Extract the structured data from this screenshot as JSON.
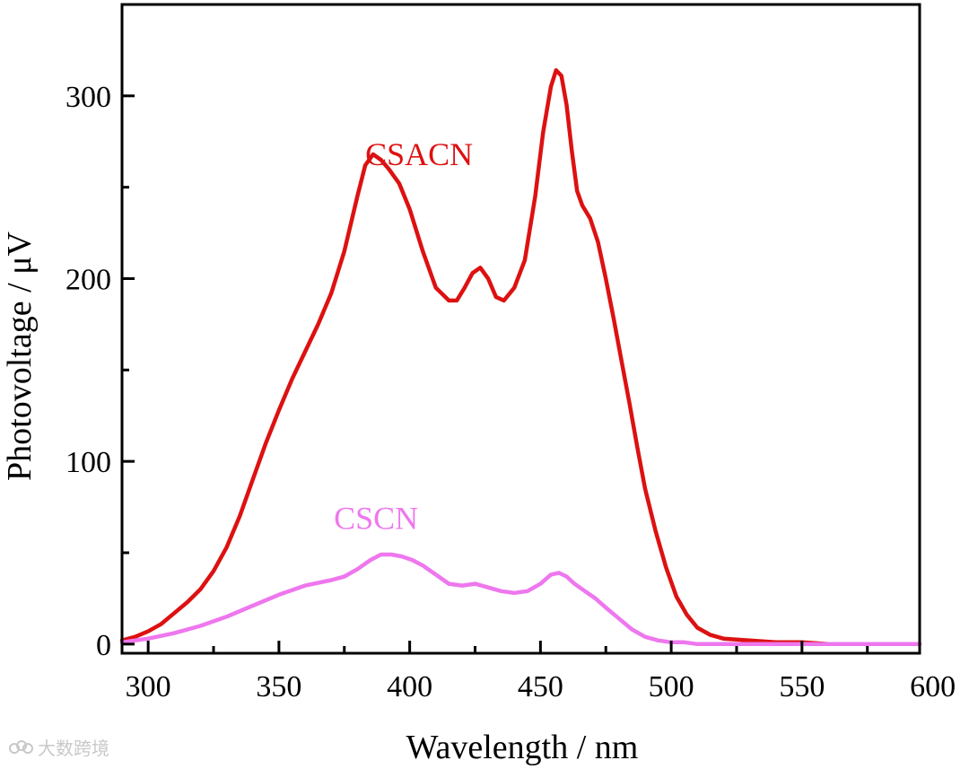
{
  "chart_data": {
    "type": "line",
    "xlabel": "Wavelength / nm",
    "ylabel": "Photovoltage / μV",
    "xlim": [
      290,
      595
    ],
    "ylim": [
      -5,
      350
    ],
    "xticks": [
      300,
      350,
      400,
      450,
      500,
      550,
      600
    ],
    "yticks": [
      0,
      100,
      200,
      300
    ],
    "grid": false,
    "legend": "inline labels",
    "series": [
      {
        "name": "CSACN",
        "color": "#dd1111",
        "label_at": [
          383,
          262
        ],
        "x": [
          290,
          295,
          300,
          305,
          310,
          315,
          320,
          325,
          330,
          335,
          340,
          345,
          350,
          355,
          360,
          365,
          370,
          375,
          380,
          383,
          386,
          389,
          392,
          396,
          400,
          405,
          410,
          415,
          418,
          421,
          424,
          427,
          430,
          433,
          436,
          440,
          444,
          448,
          451,
          454,
          456,
          458,
          460,
          462,
          464,
          466,
          469,
          472,
          475,
          478,
          481,
          484,
          487,
          490,
          494,
          498,
          502,
          506,
          510,
          515,
          520,
          530,
          540,
          550,
          560,
          570,
          580,
          590,
          595
        ],
        "values": [
          2,
          4,
          7,
          11,
          17,
          23,
          30,
          40,
          53,
          70,
          90,
          110,
          128,
          145,
          160,
          175,
          192,
          215,
          245,
          262,
          268,
          265,
          260,
          252,
          238,
          215,
          195,
          188,
          188,
          195,
          203,
          206,
          200,
          190,
          188,
          195,
          210,
          245,
          280,
          305,
          314,
          311,
          295,
          270,
          248,
          240,
          233,
          220,
          200,
          178,
          155,
          132,
          108,
          85,
          62,
          42,
          26,
          16,
          9,
          5,
          3,
          2,
          1,
          1,
          0,
          0,
          0,
          0,
          0
        ]
      },
      {
        "name": "CSCN",
        "color": "#ee77ee",
        "label_at": [
          371,
          63
        ],
        "x": [
          290,
          300,
          310,
          320,
          330,
          340,
          350,
          360,
          370,
          375,
          380,
          385,
          389,
          393,
          397,
          401,
          405,
          410,
          415,
          420,
          425,
          430,
          435,
          440,
          445,
          450,
          454,
          457,
          460,
          463,
          467,
          471,
          475,
          480,
          485,
          490,
          495,
          500,
          505,
          510,
          520,
          530,
          540,
          550,
          560,
          570,
          580,
          590,
          595
        ],
        "values": [
          1,
          3,
          6,
          10,
          15,
          21,
          27,
          32,
          35,
          37,
          41,
          46,
          49,
          49,
          48,
          46,
          43,
          38,
          33,
          32,
          33,
          31,
          29,
          28,
          29,
          33,
          38,
          39,
          37,
          33,
          29,
          25,
          20,
          14,
          8,
          4,
          2,
          1,
          1,
          0,
          0,
          0,
          0,
          0,
          0,
          0,
          0,
          0,
          0
        ]
      }
    ]
  },
  "watermark": {
    "text": "大数跨境",
    "icon": "cloud-logo-icon"
  }
}
